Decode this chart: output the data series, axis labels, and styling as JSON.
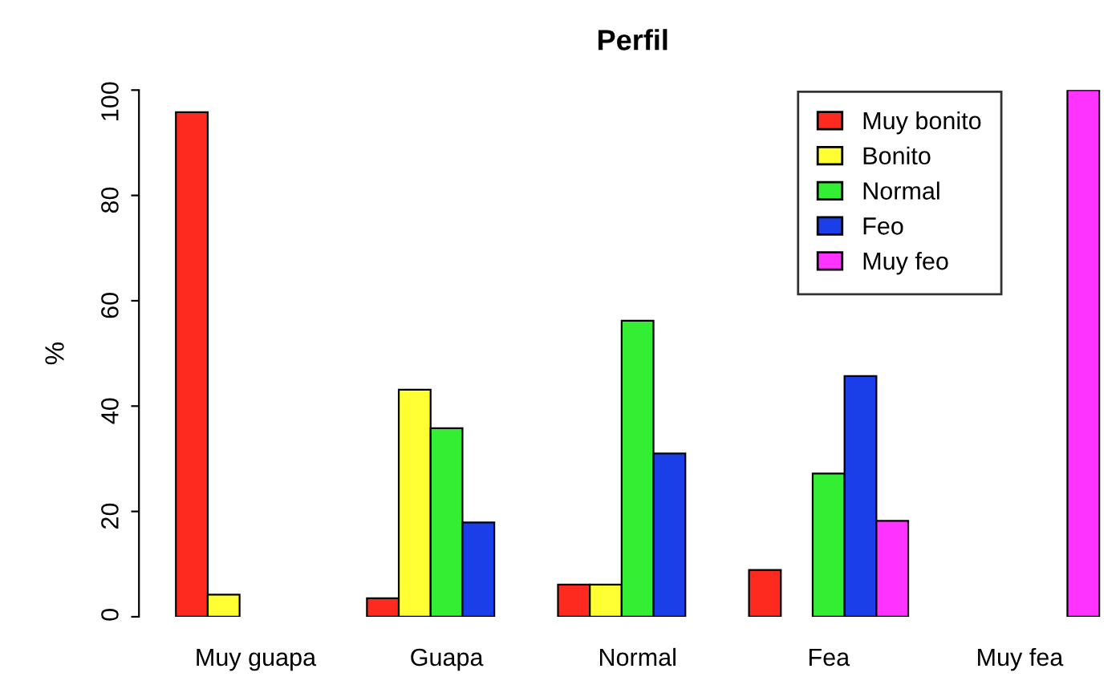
{
  "chart_data": {
    "type": "bar",
    "title": "Perfil",
    "ylabel": "%",
    "categories": [
      "Muy guapa",
      "Guapa",
      "Normal",
      "Fea",
      "Muy fea"
    ],
    "series": [
      {
        "name": "Muy bonito",
        "color": "#ff2a1f",
        "values": [
          95.8,
          3.5,
          6.1,
          8.9,
          0
        ]
      },
      {
        "name": "Bonito",
        "color": "#ffff33",
        "values": [
          4.2,
          43.1,
          6.1,
          0,
          0
        ]
      },
      {
        "name": "Normal",
        "color": "#33ee33",
        "values": [
          0,
          35.8,
          56.2,
          27.2,
          0
        ]
      },
      {
        "name": "Feo",
        "color": "#1a3fe8",
        "values": [
          0,
          17.9,
          31,
          45.7,
          0
        ]
      },
      {
        "name": "Muy feo",
        "color": "#ff33ff",
        "values": [
          0,
          0,
          0,
          18.2,
          100
        ]
      }
    ],
    "ylim": [
      0,
      100
    ],
    "yticks": [
      0,
      20,
      40,
      60,
      80,
      100
    ],
    "legend": "top right"
  }
}
